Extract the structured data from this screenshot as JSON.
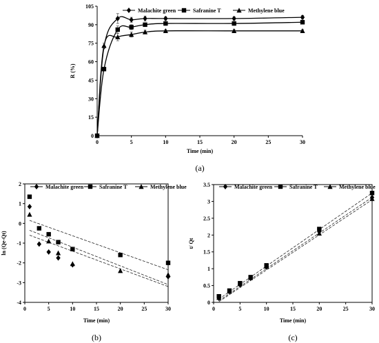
{
  "chart_data": [
    {
      "id": "a",
      "type": "line",
      "panel_label": "(a)",
      "xlabel": "Time (min)",
      "ylabel": "R (%)",
      "xlim": [
        0,
        30
      ],
      "ylim": [
        0,
        105
      ],
      "xticks": [
        0,
        5,
        10,
        15,
        20,
        25,
        30
      ],
      "yticks": [
        0,
        15,
        30,
        45,
        60,
        75,
        90,
        105
      ],
      "grid": false,
      "legend_position": "top",
      "series": [
        {
          "name": "Malachite green",
          "marker": "diamond",
          "x": [
            0,
            1,
            3,
            5,
            7,
            10,
            20,
            30
          ],
          "y": [
            0,
            72,
            95,
            94,
            95,
            95,
            95,
            96
          ],
          "error": [
            0,
            0,
            4,
            2,
            2,
            1.5,
            1.5,
            1.5
          ]
        },
        {
          "name": "Safranine T",
          "marker": "square",
          "x": [
            0,
            1,
            3,
            5,
            7,
            10,
            20,
            30
          ],
          "y": [
            0,
            54,
            86,
            88,
            90,
            91,
            91,
            92
          ],
          "error": [
            0,
            0,
            3,
            2,
            1.5,
            1.5,
            1.5,
            1.5
          ]
        },
        {
          "name": "Methylene blue",
          "marker": "triangle",
          "x": [
            0,
            1,
            3,
            5,
            7,
            10,
            20,
            30
          ],
          "y": [
            0,
            73,
            80,
            82,
            84,
            85,
            85,
            85
          ],
          "error": [
            0,
            2,
            3,
            2,
            1.5,
            1,
            1,
            1
          ]
        }
      ]
    },
    {
      "id": "b",
      "type": "scatter",
      "panel_label": "(b)",
      "xlabel": "Time (min)",
      "ylabel": "ln (Qe-Qt)",
      "xlim": [
        0,
        30
      ],
      "ylim": [
        -4,
        2
      ],
      "xticks": [
        0,
        5,
        10,
        15,
        20,
        25,
        30
      ],
      "yticks": [
        -4,
        -3,
        -2,
        -1,
        0,
        1,
        2
      ],
      "grid": false,
      "legend_position": "top",
      "series": [
        {
          "name": "Malachite green",
          "marker": "diamond",
          "x": [
            1,
            3,
            5,
            7,
            10,
            30
          ],
          "y": [
            0.85,
            -1.05,
            -1.45,
            -1.75,
            -2.1,
            -2.7
          ],
          "fit": [
            -0.6,
            -3.2
          ]
        },
        {
          "name": "Safranine T",
          "marker": "square",
          "x": [
            1,
            3,
            5,
            7,
            10,
            20,
            30
          ],
          "y": [
            1.35,
            -0.25,
            -0.55,
            -0.95,
            -1.3,
            -1.6,
            -2.0
          ],
          "fit": [
            0.15,
            -2.35
          ]
        },
        {
          "name": "Methylene blue",
          "marker": "triangle",
          "x": [
            1,
            5,
            7,
            10,
            20,
            30
          ],
          "y": [
            0.45,
            -0.9,
            -1.5,
            -2.05,
            -2.4,
            -2.6
          ],
          "fit": [
            -0.35,
            -3.1
          ]
        }
      ]
    },
    {
      "id": "c",
      "type": "scatter",
      "panel_label": "(c)",
      "xlabel": "Time (min)",
      "ylabel": "t/ Qt",
      "xlim": [
        0,
        30
      ],
      "ylim": [
        0,
        3.5
      ],
      "xticks": [
        0,
        5,
        10,
        15,
        20,
        25,
        30
      ],
      "yticks": [
        0,
        0.5,
        1,
        1.5,
        2,
        2.5,
        3,
        3.5
      ],
      "ytick_labels": [
        "0",
        "0.5",
        "1",
        "1.5",
        "2",
        "2.5",
        "3",
        "3.5"
      ],
      "grid": false,
      "legend_position": "top",
      "series": [
        {
          "name": "Malachite green",
          "marker": "diamond",
          "x": [
            1,
            3,
            5,
            7,
            10,
            20,
            30
          ],
          "y": [
            0.12,
            0.32,
            0.52,
            0.72,
            1.05,
            2.1,
            3.12
          ],
          "fit": [
            0.05,
            3.12
          ]
        },
        {
          "name": "Safranine T",
          "marker": "square",
          "x": [
            1,
            3,
            5,
            7,
            10,
            20,
            30
          ],
          "y": [
            0.18,
            0.35,
            0.57,
            0.75,
            1.1,
            2.18,
            3.25
          ],
          "fit": [
            0.1,
            3.25
          ]
        },
        {
          "name": "Methylene blue",
          "marker": "triangle",
          "x": [
            1,
            3,
            5,
            7,
            10,
            20,
            30
          ],
          "y": [
            0.14,
            0.33,
            0.55,
            0.73,
            1.07,
            2.05,
            3.08
          ],
          "fit": [
            0.02,
            3.05
          ]
        }
      ]
    }
  ]
}
